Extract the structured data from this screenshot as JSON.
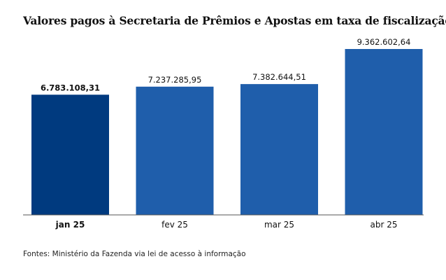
{
  "title": "Valores pagos à Secretaria de Prêmios e Apostas em taxa de fiscalização",
  "source": "Fontes: Ministério da Fazenda via lei de acesso à informação",
  "colors": {
    "highlight": "#003a7f",
    "bar": "#1f5eab",
    "baseline": "#555555"
  },
  "chart_data": {
    "type": "bar",
    "categories": [
      "jan 25",
      "fev 25",
      "mar 25",
      "abr 25"
    ],
    "values": [
      6783108.31,
      7237285.95,
      7382644.51,
      9362602.64
    ],
    "value_labels": [
      "6.783.108,31",
      "7.237.285,95",
      "7.382.644,51",
      "9.362.602,64"
    ],
    "highlighted_category": "jan 25",
    "ylim": [
      0,
      9362602.64
    ],
    "grid": false,
    "legend": "none"
  }
}
